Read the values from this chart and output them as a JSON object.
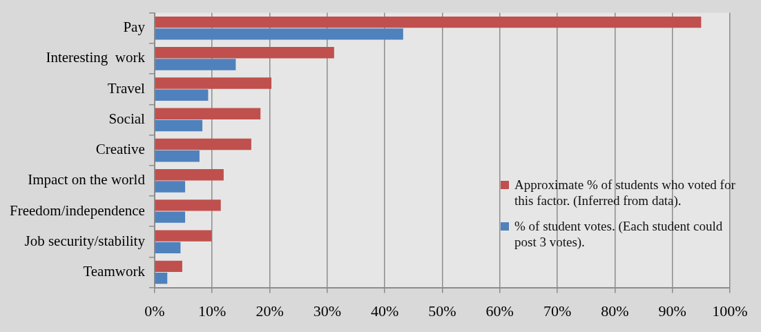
{
  "chart_data": {
    "type": "bar",
    "orientation": "horizontal",
    "categories": [
      "Pay",
      "Interesting  work",
      "Travel",
      "Social",
      "Creative",
      "Impact on the world",
      "Freedom/independence",
      "Job security/stability",
      "Teamwork"
    ],
    "series": [
      {
        "name": "Approximate % of students who voted for this factor. (Inferred from data).",
        "color": "#c0504d",
        "values": [
          95,
          31.2,
          20.3,
          18.4,
          16.8,
          12.0,
          11.5,
          9.9,
          4.8
        ]
      },
      {
        "name": "% of student votes.  (Each student could post 3 votes).",
        "color": "#4f81bd",
        "values": [
          43.2,
          14.1,
          9.3,
          8.3,
          7.8,
          5.3,
          5.3,
          4.5,
          2.2
        ]
      }
    ],
    "xlim": [
      0,
      100
    ],
    "xticks": [
      {
        "value": 0,
        "label": "0%"
      },
      {
        "value": 10,
        "label": "10%"
      },
      {
        "value": 20,
        "label": "20%"
      },
      {
        "value": 30,
        "label": "30%"
      },
      {
        "value": 40,
        "label": "40%"
      },
      {
        "value": 50,
        "label": "50%"
      },
      {
        "value": 60,
        "label": "60%"
      },
      {
        "value": 70,
        "label": "70%"
      },
      {
        "value": 80,
        "label": "80%"
      },
      {
        "value": 90,
        "label": "90%"
      },
      {
        "value": 100,
        "label": "100%"
      }
    ],
    "grid": "x",
    "legend": "bottom right"
  }
}
